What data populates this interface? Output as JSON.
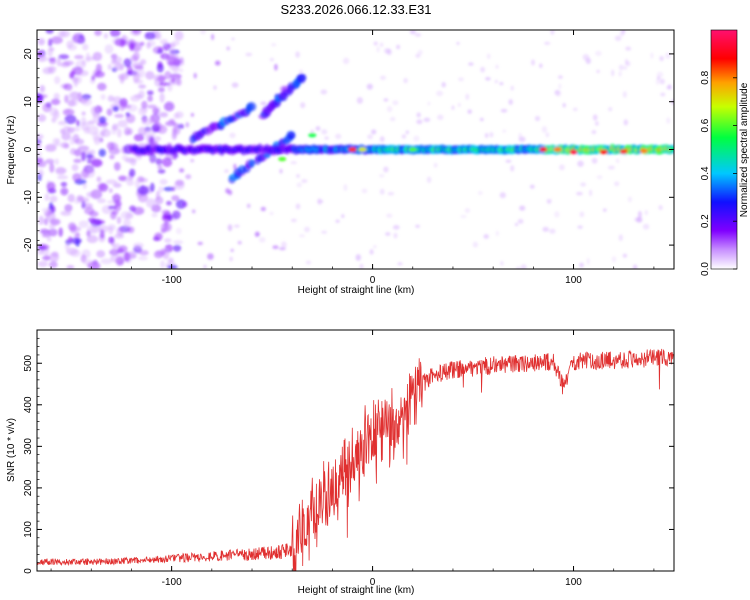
{
  "figure_title": "S233.2026.066.12.33.E31",
  "chart_data": [
    {
      "type": "heatmap",
      "title": "S233.2026.066.12.33.E31",
      "xlabel": "Height of straight line (km)",
      "ylabel": "Frequency (Hz)",
      "xlim": [
        -167,
        150
      ],
      "ylim": [
        -25,
        25
      ],
      "xticks": [
        -100,
        0,
        100
      ],
      "yticks": [
        -20,
        -10,
        0,
        10,
        20
      ],
      "colorbar": {
        "label": "Normalized spectral amplitude",
        "range": [
          0,
          1
        ],
        "ticks": [
          0.0,
          0.2,
          0.4,
          0.6,
          0.8
        ],
        "colors": [
          "#ffffff",
          "#b060ff",
          "#5000ff",
          "#0010ff",
          "#00d8ff",
          "#00ff40",
          "#ffff00",
          "#ff8000",
          "#ff0000",
          "#ff0070"
        ]
      },
      "features": {
        "main_band": {
          "freq_hz": 0,
          "x_start_km": -120,
          "x_end_km": 150,
          "peak_amplitude": 1.0
        },
        "diagonal_streaks": [
          {
            "from": [
              -90,
              2
            ],
            "to": [
              -60,
              9
            ]
          },
          {
            "from": [
              -70,
              -6
            ],
            "to": [
              -40,
              3
            ]
          },
          {
            "from": [
              -55,
              7
            ],
            "to": [
              -35,
              15
            ]
          }
        ],
        "noise_region_km": [
          -167,
          -100
        ]
      }
    },
    {
      "type": "line",
      "title": "",
      "xlabel": "Height of straight line (km)",
      "ylabel": "SNR (10 * v/v)",
      "xlim": [
        -167,
        150
      ],
      "ylim": [
        0,
        580
      ],
      "xticks": [
        -100,
        0,
        100
      ],
      "yticks": [
        0,
        100,
        200,
        300,
        400,
        500
      ],
      "series": [
        {
          "name": "SNR",
          "color": "#e03030",
          "x": [
            -167,
            -140,
            -120,
            -100,
            -80,
            -60,
            -50,
            -40,
            -35,
            -30,
            -25,
            -20,
            -15,
            -10,
            -5,
            0,
            5,
            10,
            15,
            20,
            25,
            30,
            40,
            50,
            60,
            70,
            80,
            90,
            95,
            100,
            110,
            120,
            130,
            140,
            150
          ],
          "y": [
            22,
            22,
            25,
            30,
            35,
            40,
            45,
            50,
            110,
            140,
            170,
            200,
            230,
            270,
            300,
            330,
            340,
            350,
            370,
            420,
            450,
            470,
            485,
            490,
            495,
            498,
            500,
            505,
            440,
            505,
            505,
            508,
            510,
            512,
            515
          ]
        }
      ]
    }
  ]
}
